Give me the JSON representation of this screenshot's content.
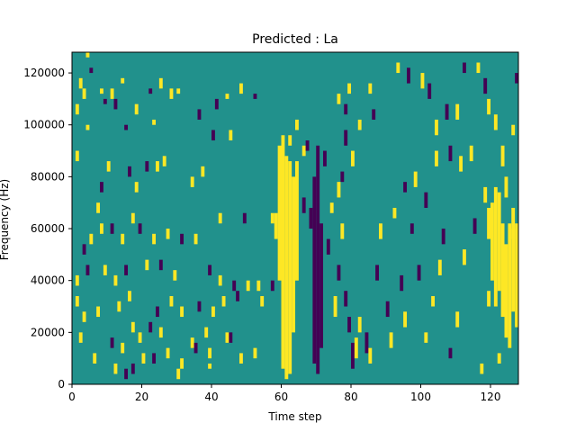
{
  "chart_data": {
    "type": "heatmap",
    "title": "Predicted : La",
    "xlabel": "Time step",
    "ylabel": "Frequency (Hz)",
    "xlim": [
      0,
      128
    ],
    "ylim": [
      0,
      128000
    ],
    "xticks": [
      0,
      20,
      40,
      60,
      80,
      100,
      120
    ],
    "yticks": [
      0,
      20000,
      40000,
      60000,
      80000,
      100000,
      120000
    ],
    "grid": false,
    "legend": "none",
    "colormap": "viridis",
    "colors": {
      "background": "#21918c",
      "high": "#fde725",
      "low": "#440154"
    },
    "values_note_levels": {
      "background": 0,
      "high": 1,
      "low": -1
    },
    "bin_width_time": 1,
    "bin_height_hz": 2000,
    "marks": [
      {
        "x": 4,
        "y": 126000,
        "h": 2000,
        "v": 1
      },
      {
        "x": 5,
        "y": 120000,
        "h": 2000,
        "v": -1
      },
      {
        "x": 2,
        "y": 114000,
        "h": 4000,
        "v": 1
      },
      {
        "x": 3,
        "y": 110000,
        "h": 4000,
        "v": 1
      },
      {
        "x": 1,
        "y": 104000,
        "h": 4000,
        "v": 1
      },
      {
        "x": 8,
        "y": 112000,
        "h": 2000,
        "v": 1
      },
      {
        "x": 9,
        "y": 108000,
        "h": 2000,
        "v": -1
      },
      {
        "x": 11,
        "y": 110000,
        "h": 4000,
        "v": 1
      },
      {
        "x": 12,
        "y": 106000,
        "h": 4000,
        "v": -1
      },
      {
        "x": 14,
        "y": 116000,
        "h": 2000,
        "v": 1
      },
      {
        "x": 18,
        "y": 104000,
        "h": 4000,
        "v": 1
      },
      {
        "x": 22,
        "y": 112000,
        "h": 2000,
        "v": -1
      },
      {
        "x": 25,
        "y": 114000,
        "h": 4000,
        "v": 1
      },
      {
        "x": 28,
        "y": 110000,
        "h": 4000,
        "v": 1
      },
      {
        "x": 30,
        "y": 112000,
        "h": 2000,
        "v": 1
      },
      {
        "x": 36,
        "y": 102000,
        "h": 4000,
        "v": -1
      },
      {
        "x": 41,
        "y": 106000,
        "h": 4000,
        "v": -1
      },
      {
        "x": 44,
        "y": 110000,
        "h": 2000,
        "v": 1
      },
      {
        "x": 48,
        "y": 112000,
        "h": 4000,
        "v": 1
      },
      {
        "x": 52,
        "y": 110000,
        "h": 2000,
        "v": -1
      },
      {
        "x": 23,
        "y": 100000,
        "h": 2000,
        "v": 1
      },
      {
        "x": 15,
        "y": 98000,
        "h": 2000,
        "v": -1
      },
      {
        "x": 4,
        "y": 98000,
        "h": 2000,
        "v": 1
      },
      {
        "x": 26,
        "y": 84000,
        "h": 4000,
        "v": 1
      },
      {
        "x": 40,
        "y": 94000,
        "h": 4000,
        "v": -1
      },
      {
        "x": 45,
        "y": 94000,
        "h": 4000,
        "v": 1
      },
      {
        "x": 1,
        "y": 86000,
        "h": 4000,
        "v": 1
      },
      {
        "x": 10,
        "y": 82000,
        "h": 4000,
        "v": 1
      },
      {
        "x": 16,
        "y": 80000,
        "h": 4000,
        "v": -1
      },
      {
        "x": 21,
        "y": 82000,
        "h": 4000,
        "v": -1
      },
      {
        "x": 24,
        "y": 82000,
        "h": 4000,
        "v": 1
      },
      {
        "x": 8,
        "y": 74000,
        "h": 4000,
        "v": -1
      },
      {
        "x": 7,
        "y": 66000,
        "h": 4000,
        "v": 1
      },
      {
        "x": 18,
        "y": 74000,
        "h": 4000,
        "v": 1
      },
      {
        "x": 34,
        "y": 76000,
        "h": 4000,
        "v": 1
      },
      {
        "x": 37,
        "y": 80000,
        "h": 4000,
        "v": 1
      },
      {
        "x": 42,
        "y": 62000,
        "h": 4000,
        "v": 1
      },
      {
        "x": 49,
        "y": 62000,
        "h": 4000,
        "v": -1
      },
      {
        "x": 5,
        "y": 54000,
        "h": 4000,
        "v": 1
      },
      {
        "x": 8,
        "y": 58000,
        "h": 4000,
        "v": 1
      },
      {
        "x": 11,
        "y": 58000,
        "h": 4000,
        "v": -1
      },
      {
        "x": 14,
        "y": 54000,
        "h": 4000,
        "v": 1
      },
      {
        "x": 17,
        "y": 62000,
        "h": 4000,
        "v": 1
      },
      {
        "x": 19,
        "y": 58000,
        "h": 4000,
        "v": -1
      },
      {
        "x": 23,
        "y": 54000,
        "h": 4000,
        "v": 1
      },
      {
        "x": 27,
        "y": 56000,
        "h": 4000,
        "v": 1
      },
      {
        "x": 31,
        "y": 54000,
        "h": 4000,
        "v": -1
      },
      {
        "x": 35,
        "y": 54000,
        "h": 4000,
        "v": 1
      },
      {
        "x": 3,
        "y": 50000,
        "h": 4000,
        "v": -1
      },
      {
        "x": 4,
        "y": 42000,
        "h": 4000,
        "v": -1
      },
      {
        "x": 1,
        "y": 38000,
        "h": 4000,
        "v": 1
      },
      {
        "x": 9,
        "y": 42000,
        "h": 4000,
        "v": 1
      },
      {
        "x": 12,
        "y": 38000,
        "h": 4000,
        "v": 1
      },
      {
        "x": 15,
        "y": 42000,
        "h": 4000,
        "v": -1
      },
      {
        "x": 21,
        "y": 44000,
        "h": 4000,
        "v": 1
      },
      {
        "x": 25,
        "y": 44000,
        "h": 4000,
        "v": -1
      },
      {
        "x": 29,
        "y": 40000,
        "h": 4000,
        "v": 1
      },
      {
        "x": 39,
        "y": 42000,
        "h": 4000,
        "v": -1
      },
      {
        "x": 42,
        "y": 38000,
        "h": 4000,
        "v": 1
      },
      {
        "x": 46,
        "y": 36000,
        "h": 4000,
        "v": -1
      },
      {
        "x": 50,
        "y": 36000,
        "h": 4000,
        "v": 1
      },
      {
        "x": 53,
        "y": 36000,
        "h": 4000,
        "v": 1
      },
      {
        "x": 57,
        "y": 36000,
        "h": 4000,
        "v": -1
      },
      {
        "x": 1,
        "y": 30000,
        "h": 4000,
        "v": 1
      },
      {
        "x": 3,
        "y": 24000,
        "h": 4000,
        "v": 1
      },
      {
        "x": 7,
        "y": 26000,
        "h": 4000,
        "v": 1
      },
      {
        "x": 13,
        "y": 28000,
        "h": 4000,
        "v": 1
      },
      {
        "x": 16,
        "y": 32000,
        "h": 4000,
        "v": 1
      },
      {
        "x": 24,
        "y": 26000,
        "h": 4000,
        "v": -1
      },
      {
        "x": 28,
        "y": 30000,
        "h": 4000,
        "v": 1
      },
      {
        "x": 31,
        "y": 26000,
        "h": 4000,
        "v": 1
      },
      {
        "x": 36,
        "y": 28000,
        "h": 4000,
        "v": -1
      },
      {
        "x": 40,
        "y": 26000,
        "h": 4000,
        "v": 1
      },
      {
        "x": 43,
        "y": 30000,
        "h": 4000,
        "v": 1
      },
      {
        "x": 47,
        "y": 32000,
        "h": 4000,
        "v": -1
      },
      {
        "x": 54,
        "y": 30000,
        "h": 4000,
        "v": 1
      },
      {
        "x": 2,
        "y": 16000,
        "h": 4000,
        "v": 1
      },
      {
        "x": 6,
        "y": 8000,
        "h": 4000,
        "v": 1
      },
      {
        "x": 11,
        "y": 14000,
        "h": 4000,
        "v": -1
      },
      {
        "x": 14,
        "y": 12000,
        "h": 4000,
        "v": 1
      },
      {
        "x": 17,
        "y": 20000,
        "h": 4000,
        "v": 1
      },
      {
        "x": 19,
        "y": 16000,
        "h": 4000,
        "v": 1
      },
      {
        "x": 22,
        "y": 20000,
        "h": 4000,
        "v": -1
      },
      {
        "x": 25,
        "y": 18000,
        "h": 4000,
        "v": 1
      },
      {
        "x": 34,
        "y": 14000,
        "h": 4000,
        "v": 1
      },
      {
        "x": 38,
        "y": 18000,
        "h": 4000,
        "v": 1
      },
      {
        "x": 44,
        "y": 16000,
        "h": 4000,
        "v": 1
      },
      {
        "x": 45,
        "y": 16000,
        "h": 4000,
        "v": -1
      },
      {
        "x": 23,
        "y": 8000,
        "h": 4000,
        "v": -1
      },
      {
        "x": 27,
        "y": 10000,
        "h": 4000,
        "v": 1
      },
      {
        "x": 31,
        "y": 6000,
        "h": 4000,
        "v": 1
      },
      {
        "x": 35,
        "y": 12000,
        "h": 4000,
        "v": -1
      },
      {
        "x": 39,
        "y": 10000,
        "h": 4000,
        "v": 1
      },
      {
        "x": 48,
        "y": 8000,
        "h": 4000,
        "v": 1
      },
      {
        "x": 52,
        "y": 10000,
        "h": 4000,
        "v": 1
      },
      {
        "x": 15,
        "y": 2000,
        "h": 4000,
        "v": -1
      },
      {
        "x": 12,
        "y": 4000,
        "h": 4000,
        "v": 1
      },
      {
        "x": 17,
        "y": 4000,
        "h": 4000,
        "v": -1
      },
      {
        "x": 20,
        "y": 8000,
        "h": 4000,
        "v": 1
      },
      {
        "x": 30,
        "y": 2000,
        "h": 4000,
        "v": 1
      },
      {
        "x": 39,
        "y": 6000,
        "h": 2000,
        "v": 1
      },
      {
        "x": 59,
        "y": 40000,
        "h": 52000,
        "v": 1
      },
      {
        "x": 60,
        "y": 6000,
        "h": 90000,
        "v": 1
      },
      {
        "x": 61,
        "y": 2000,
        "h": 86000,
        "v": 1
      },
      {
        "x": 62,
        "y": 4000,
        "h": 82000,
        "v": 1
      },
      {
        "x": 63,
        "y": 20000,
        "h": 60000,
        "v": 1
      },
      {
        "x": 64,
        "y": 40000,
        "h": 46000,
        "v": 1
      },
      {
        "x": 58,
        "y": 56000,
        "h": 10000,
        "v": 1
      },
      {
        "x": 57,
        "y": 62000,
        "h": 4000,
        "v": 1
      },
      {
        "x": 62,
        "y": 92000,
        "h": 4000,
        "v": 1
      },
      {
        "x": 64,
        "y": 98000,
        "h": 4000,
        "v": 1
      },
      {
        "x": 66,
        "y": 88000,
        "h": 4000,
        "v": 1
      },
      {
        "x": 67,
        "y": 90000,
        "h": 4000,
        "v": -1
      },
      {
        "x": 69,
        "y": 8000,
        "h": 72000,
        "v": -1
      },
      {
        "x": 70,
        "y": 4000,
        "h": 88000,
        "v": -1
      },
      {
        "x": 71,
        "y": 14000,
        "h": 48000,
        "v": -1
      },
      {
        "x": 68,
        "y": 60000,
        "h": 8000,
        "v": -1
      },
      {
        "x": 66,
        "y": 66000,
        "h": 6000,
        "v": -1
      },
      {
        "x": 72,
        "y": 84000,
        "h": 6000,
        "v": -1
      },
      {
        "x": 73,
        "y": 50000,
        "h": 6000,
        "v": -1
      },
      {
        "x": 75,
        "y": 26000,
        "h": 8000,
        "v": 1
      },
      {
        "x": 76,
        "y": 40000,
        "h": 6000,
        "v": -1
      },
      {
        "x": 77,
        "y": 56000,
        "h": 6000,
        "v": 1
      },
      {
        "x": 78,
        "y": 30000,
        "h": 6000,
        "v": -1
      },
      {
        "x": 79,
        "y": 20000,
        "h": 6000,
        "v": -1
      },
      {
        "x": 80,
        "y": 6000,
        "h": 10000,
        "v": -1
      },
      {
        "x": 81,
        "y": 10000,
        "h": 8000,
        "v": 1
      },
      {
        "x": 82,
        "y": 20000,
        "h": 6000,
        "v": 1
      },
      {
        "x": 76,
        "y": 72000,
        "h": 6000,
        "v": 1
      },
      {
        "x": 78,
        "y": 92000,
        "h": 6000,
        "v": -1
      },
      {
        "x": 80,
        "y": 84000,
        "h": 6000,
        "v": 1
      },
      {
        "x": 74,
        "y": 66000,
        "h": 4000,
        "v": 1
      },
      {
        "x": 77,
        "y": 78000,
        "h": 4000,
        "v": -1
      },
      {
        "x": 79,
        "y": 112000,
        "h": 4000,
        "v": 1
      },
      {
        "x": 78,
        "y": 104000,
        "h": 4000,
        "v": -1
      },
      {
        "x": 76,
        "y": 108000,
        "h": 4000,
        "v": 1
      },
      {
        "x": 82,
        "y": 98000,
        "h": 4000,
        "v": 1
      },
      {
        "x": 85,
        "y": 112000,
        "h": 4000,
        "v": 1
      },
      {
        "x": 86,
        "y": 102000,
        "h": 4000,
        "v": -1
      },
      {
        "x": 84,
        "y": 12000,
        "h": 8000,
        "v": -1
      },
      {
        "x": 85,
        "y": 8000,
        "h": 6000,
        "v": 1
      },
      {
        "x": 87,
        "y": 40000,
        "h": 6000,
        "v": -1
      },
      {
        "x": 88,
        "y": 56000,
        "h": 6000,
        "v": 1
      },
      {
        "x": 90,
        "y": 26000,
        "h": 6000,
        "v": -1
      },
      {
        "x": 91,
        "y": 14000,
        "h": 6000,
        "v": 1
      },
      {
        "x": 94,
        "y": 36000,
        "h": 6000,
        "v": -1
      },
      {
        "x": 95,
        "y": 22000,
        "h": 6000,
        "v": 1
      },
      {
        "x": 97,
        "y": 58000,
        "h": 4000,
        "v": -1
      },
      {
        "x": 99,
        "y": 40000,
        "h": 6000,
        "v": -1
      },
      {
        "x": 101,
        "y": 16000,
        "h": 4000,
        "v": 1
      },
      {
        "x": 103,
        "y": 30000,
        "h": 4000,
        "v": 1
      },
      {
        "x": 105,
        "y": 42000,
        "h": 6000,
        "v": 1
      },
      {
        "x": 106,
        "y": 54000,
        "h": 6000,
        "v": -1
      },
      {
        "x": 108,
        "y": 10000,
        "h": 4000,
        "v": -1
      },
      {
        "x": 110,
        "y": 22000,
        "h": 6000,
        "v": 1
      },
      {
        "x": 112,
        "y": 46000,
        "h": 6000,
        "v": 1
      },
      {
        "x": 115,
        "y": 58000,
        "h": 6000,
        "v": -1
      },
      {
        "x": 118,
        "y": 70000,
        "h": 6000,
        "v": 1
      },
      {
        "x": 92,
        "y": 64000,
        "h": 4000,
        "v": 1
      },
      {
        "x": 95,
        "y": 74000,
        "h": 4000,
        "v": -1
      },
      {
        "x": 98,
        "y": 76000,
        "h": 6000,
        "v": 1
      },
      {
        "x": 101,
        "y": 68000,
        "h": 6000,
        "v": -1
      },
      {
        "x": 104,
        "y": 84000,
        "h": 6000,
        "v": 1
      },
      {
        "x": 108,
        "y": 86000,
        "h": 6000,
        "v": -1
      },
      {
        "x": 111,
        "y": 82000,
        "h": 6000,
        "v": 1
      },
      {
        "x": 114,
        "y": 86000,
        "h": 6000,
        "v": 1
      },
      {
        "x": 93,
        "y": 120000,
        "h": 4000,
        "v": 1
      },
      {
        "x": 96,
        "y": 116000,
        "h": 6000,
        "v": -1
      },
      {
        "x": 100,
        "y": 114000,
        "h": 6000,
        "v": 1
      },
      {
        "x": 102,
        "y": 110000,
        "h": 6000,
        "v": -1
      },
      {
        "x": 104,
        "y": 96000,
        "h": 6000,
        "v": 1
      },
      {
        "x": 107,
        "y": 102000,
        "h": 6000,
        "v": -1
      },
      {
        "x": 110,
        "y": 102000,
        "h": 6000,
        "v": 1
      },
      {
        "x": 112,
        "y": 120000,
        "h": 4000,
        "v": -1
      },
      {
        "x": 116,
        "y": 120000,
        "h": 4000,
        "v": 1
      },
      {
        "x": 118,
        "y": 112000,
        "h": 6000,
        "v": -1
      },
      {
        "x": 119,
        "y": 104000,
        "h": 6000,
        "v": 1
      },
      {
        "x": 121,
        "y": 98000,
        "h": 6000,
        "v": 1
      },
      {
        "x": 127,
        "y": 116000,
        "h": 4000,
        "v": -1
      },
      {
        "x": 119,
        "y": 56000,
        "h": 12000,
        "v": 1
      },
      {
        "x": 120,
        "y": 40000,
        "h": 30000,
        "v": 1
      },
      {
        "x": 121,
        "y": 30000,
        "h": 46000,
        "v": 1
      },
      {
        "x": 122,
        "y": 36000,
        "h": 38000,
        "v": 1
      },
      {
        "x": 123,
        "y": 26000,
        "h": 36000,
        "v": 1
      },
      {
        "x": 124,
        "y": 18000,
        "h": 36000,
        "v": 1
      },
      {
        "x": 125,
        "y": 14000,
        "h": 48000,
        "v": 1
      },
      {
        "x": 126,
        "y": 28000,
        "h": 40000,
        "v": 1
      },
      {
        "x": 127,
        "y": 22000,
        "h": 40000,
        "v": 1
      },
      {
        "x": 119,
        "y": 30000,
        "h": 6000,
        "v": 1
      },
      {
        "x": 123,
        "y": 84000,
        "h": 8000,
        "v": 1
      },
      {
        "x": 124,
        "y": 72000,
        "h": 8000,
        "v": 1
      },
      {
        "x": 126,
        "y": 96000,
        "h": 4000,
        "v": 1
      },
      {
        "x": 122,
        "y": 8000,
        "h": 4000,
        "v": 1
      },
      {
        "x": 117,
        "y": 4000,
        "h": 4000,
        "v": 1
      },
      {
        "x": 126,
        "y": 56000,
        "h": 4000,
        "v": 1
      }
    ]
  }
}
